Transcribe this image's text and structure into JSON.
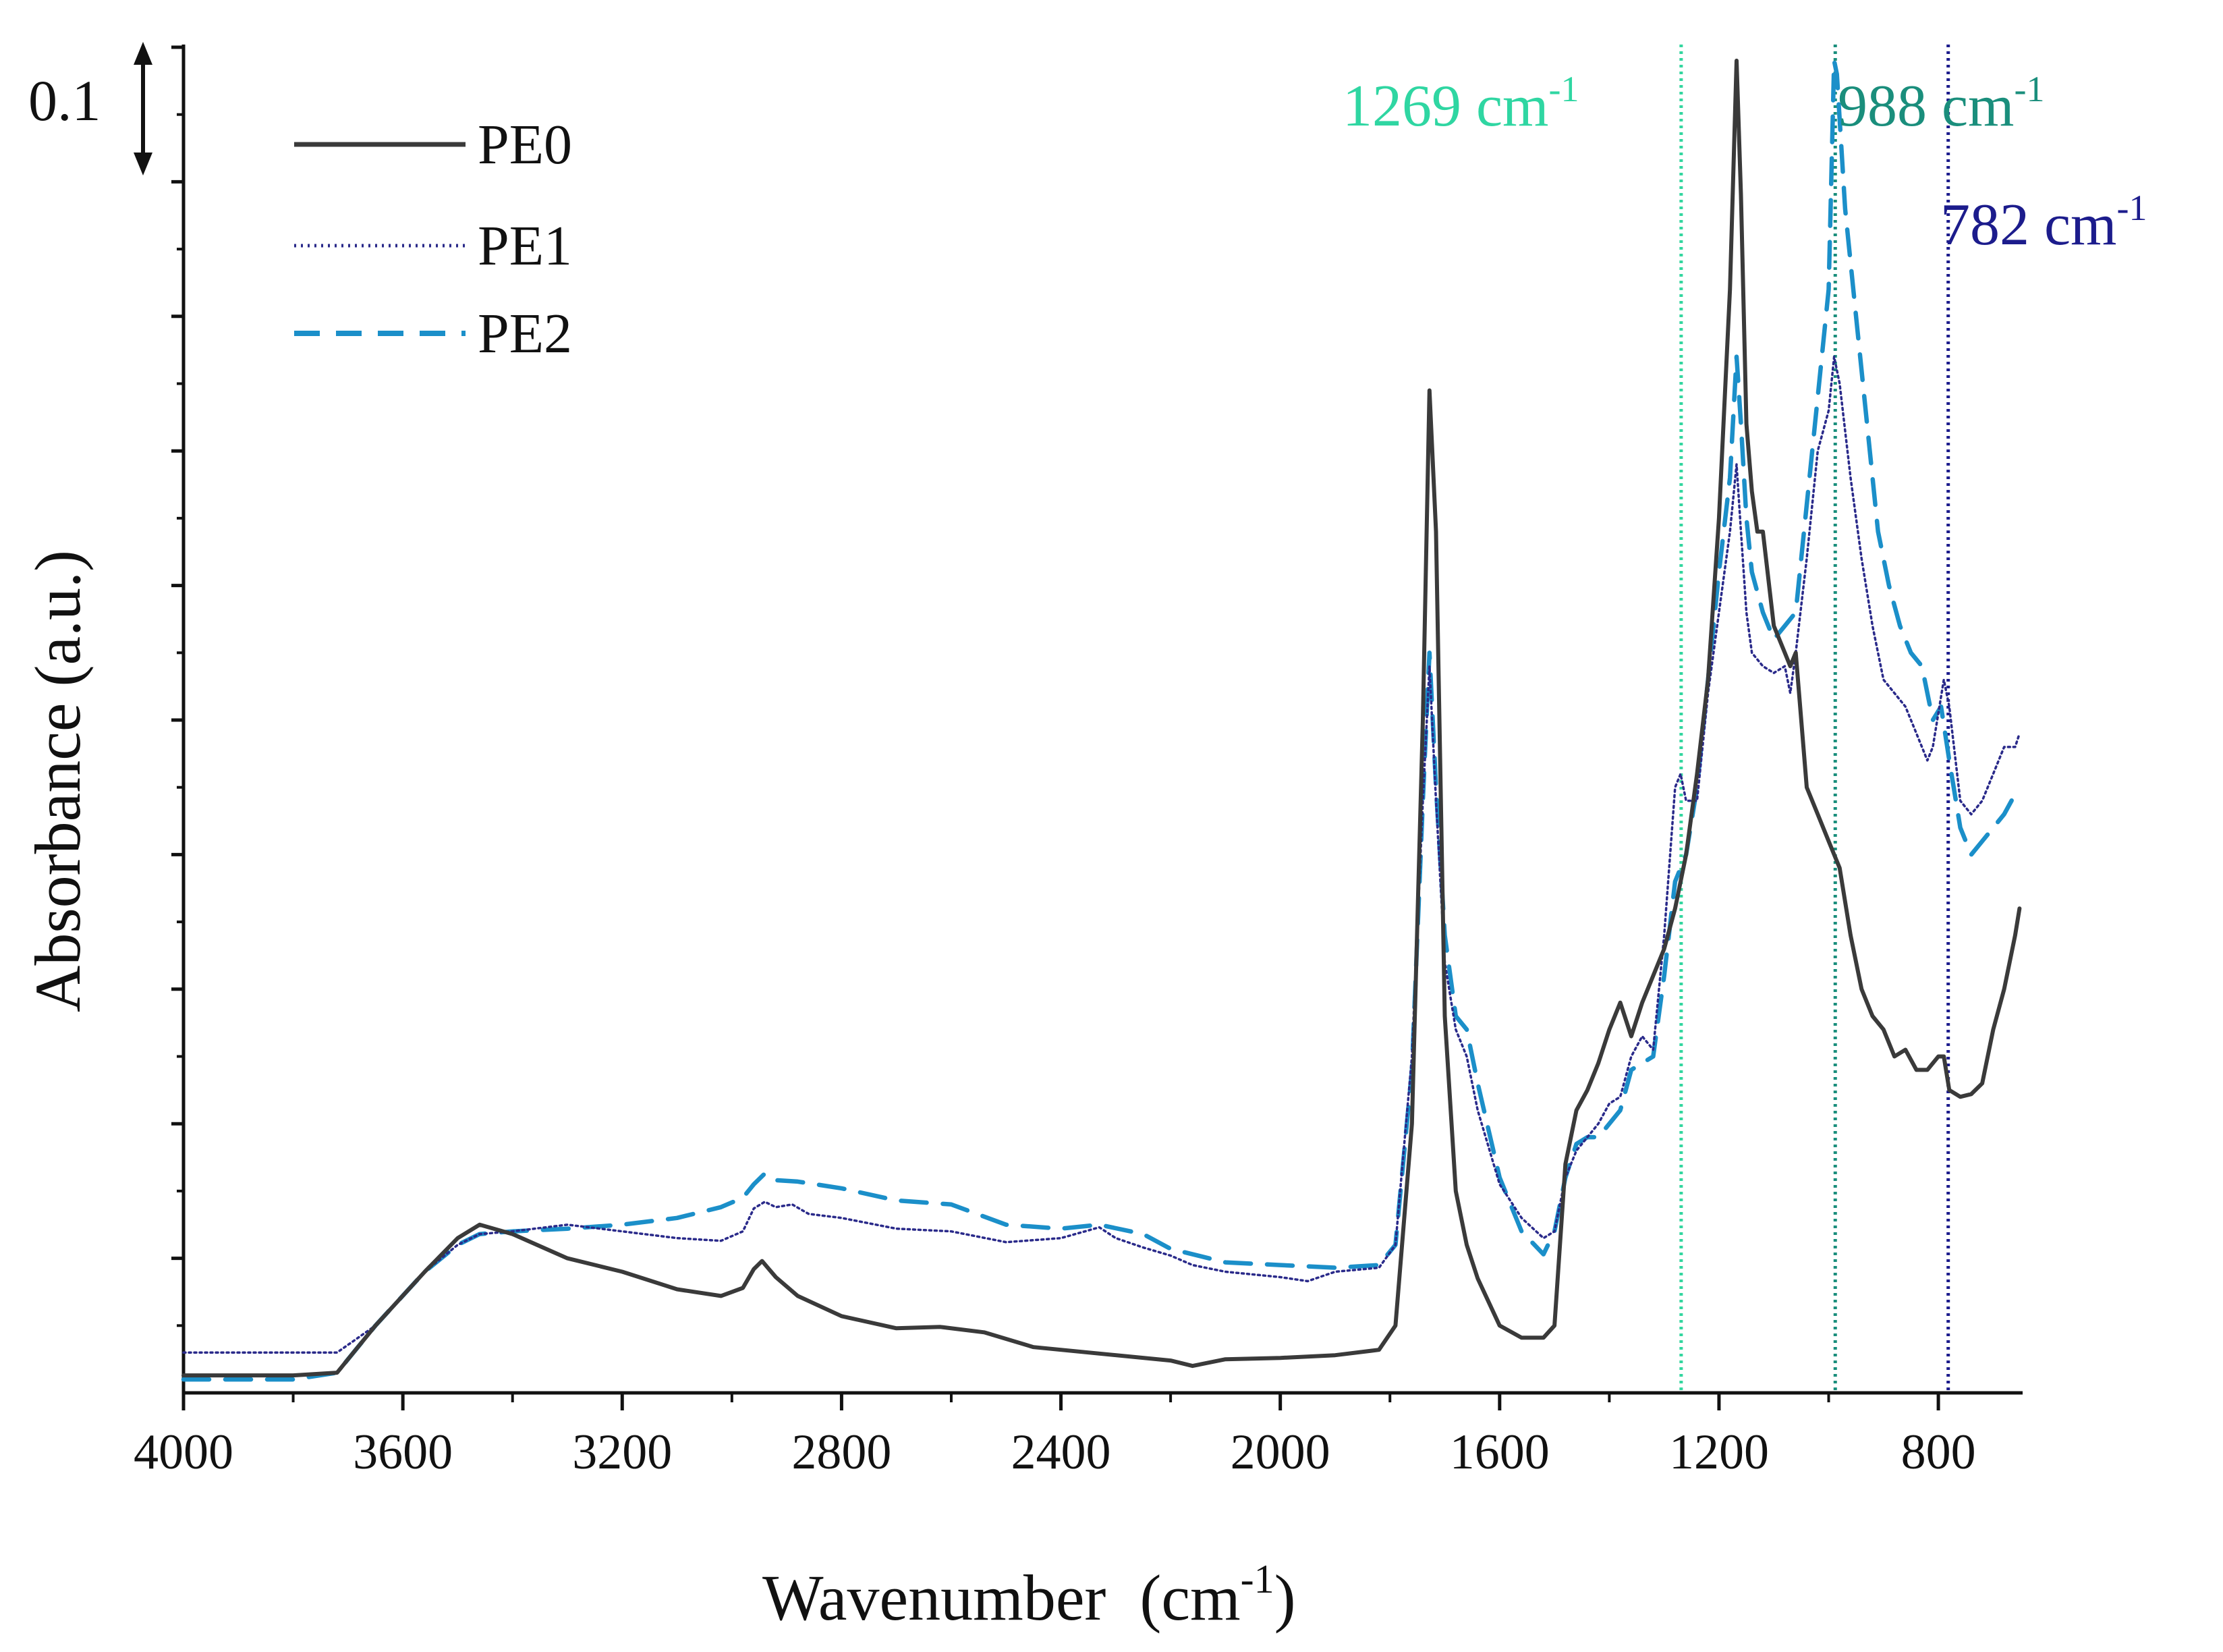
{
  "chart_data": {
    "type": "line",
    "title": "",
    "xlabel": "Wavenumber",
    "xlabel_unit_base": "(cm",
    "xlabel_unit_sup": "-1",
    "xlabel_unit_close": ")",
    "ylabel": "Absorbance (a.u.)",
    "xlim": [
      4000,
      650
    ],
    "ylim": [
      0,
      1.0
    ],
    "x_ticks": [
      4000,
      3600,
      3200,
      2800,
      2400,
      2000,
      1600,
      1200,
      800
    ],
    "x_tick_labels": [
      "4000",
      "3600",
      "3200",
      "2800",
      "2400",
      "2000",
      "1600",
      "1200",
      "800"
    ],
    "y_ticks": [
      0.1,
      0.2,
      0.3,
      0.4,
      0.5,
      0.6,
      0.7,
      0.8,
      0.9,
      1.0
    ],
    "scale_bar": {
      "label": "0.1",
      "value": 0.1
    },
    "legend_position": "top-left",
    "series": [
      {
        "name": "PE0",
        "color": "#3a3a3a",
        "dash": "solid",
        "points": [
          [
            4000,
            0.013
          ],
          [
            3800,
            0.013
          ],
          [
            3720,
            0.015
          ],
          [
            3650,
            0.05
          ],
          [
            3560,
            0.09
          ],
          [
            3500,
            0.115
          ],
          [
            3460,
            0.125
          ],
          [
            3400,
            0.118
          ],
          [
            3300,
            0.1
          ],
          [
            3200,
            0.09
          ],
          [
            3100,
            0.077
          ],
          [
            3020,
            0.072
          ],
          [
            2980,
            0.078
          ],
          [
            2960,
            0.092
          ],
          [
            2945,
            0.098
          ],
          [
            2920,
            0.086
          ],
          [
            2880,
            0.072
          ],
          [
            2800,
            0.057
          ],
          [
            2700,
            0.048
          ],
          [
            2620,
            0.049
          ],
          [
            2540,
            0.045
          ],
          [
            2450,
            0.034
          ],
          [
            2350,
            0.03
          ],
          [
            2200,
            0.024
          ],
          [
            2160,
            0.02
          ],
          [
            2100,
            0.025
          ],
          [
            2000,
            0.026
          ],
          [
            1900,
            0.028
          ],
          [
            1820,
            0.032
          ],
          [
            1790,
            0.05
          ],
          [
            1760,
            0.2
          ],
          [
            1740,
            0.5
          ],
          [
            1728,
            0.745
          ],
          [
            1716,
            0.64
          ],
          [
            1700,
            0.28
          ],
          [
            1680,
            0.15
          ],
          [
            1660,
            0.11
          ],
          [
            1640,
            0.085
          ],
          [
            1600,
            0.05
          ],
          [
            1560,
            0.041
          ],
          [
            1520,
            0.041
          ],
          [
            1500,
            0.05
          ],
          [
            1480,
            0.17
          ],
          [
            1460,
            0.21
          ],
          [
            1440,
            0.225
          ],
          [
            1420,
            0.245
          ],
          [
            1400,
            0.27
          ],
          [
            1380,
            0.29
          ],
          [
            1360,
            0.265
          ],
          [
            1340,
            0.29
          ],
          [
            1320,
            0.31
          ],
          [
            1300,
            0.33
          ],
          [
            1280,
            0.36
          ],
          [
            1260,
            0.4
          ],
          [
            1240,
            0.46
          ],
          [
            1220,
            0.53
          ],
          [
            1200,
            0.65
          ],
          [
            1180,
            0.82
          ],
          [
            1168,
            0.99
          ],
          [
            1160,
            0.89
          ],
          [
            1150,
            0.72
          ],
          [
            1140,
            0.67
          ],
          [
            1130,
            0.64
          ],
          [
            1120,
            0.64
          ],
          [
            1100,
            0.57
          ],
          [
            1080,
            0.55
          ],
          [
            1070,
            0.54
          ],
          [
            1060,
            0.55
          ],
          [
            1040,
            0.45
          ],
          [
            1020,
            0.43
          ],
          [
            1000,
            0.41
          ],
          [
            980,
            0.39
          ],
          [
            960,
            0.34
          ],
          [
            940,
            0.3
          ],
          [
            920,
            0.28
          ],
          [
            900,
            0.27
          ],
          [
            880,
            0.25
          ],
          [
            860,
            0.255
          ],
          [
            840,
            0.24
          ],
          [
            820,
            0.24
          ],
          [
            800,
            0.25
          ],
          [
            790,
            0.25
          ],
          [
            780,
            0.225
          ],
          [
            760,
            0.22
          ],
          [
            740,
            0.222
          ],
          [
            720,
            0.23
          ],
          [
            700,
            0.27
          ],
          [
            680,
            0.3
          ],
          [
            660,
            0.34
          ],
          [
            652,
            0.36
          ]
        ]
      },
      {
        "name": "PE1",
        "color": "#2a2a8a",
        "dash": "dotted",
        "points": [
          [
            4000,
            0.03
          ],
          [
            3800,
            0.03
          ],
          [
            3720,
            0.03
          ],
          [
            3650,
            0.05
          ],
          [
            3560,
            0.09
          ],
          [
            3500,
            0.11
          ],
          [
            3460,
            0.118
          ],
          [
            3400,
            0.12
          ],
          [
            3300,
            0.125
          ],
          [
            3200,
            0.12
          ],
          [
            3100,
            0.115
          ],
          [
            3020,
            0.113
          ],
          [
            2980,
            0.12
          ],
          [
            2960,
            0.137
          ],
          [
            2940,
            0.142
          ],
          [
            2920,
            0.138
          ],
          [
            2890,
            0.14
          ],
          [
            2860,
            0.133
          ],
          [
            2800,
            0.13
          ],
          [
            2700,
            0.122
          ],
          [
            2600,
            0.12
          ],
          [
            2500,
            0.112
          ],
          [
            2400,
            0.115
          ],
          [
            2330,
            0.123
          ],
          [
            2300,
            0.115
          ],
          [
            2250,
            0.108
          ],
          [
            2200,
            0.102
          ],
          [
            2160,
            0.095
          ],
          [
            2100,
            0.09
          ],
          [
            2000,
            0.086
          ],
          [
            1950,
            0.083
          ],
          [
            1900,
            0.09
          ],
          [
            1820,
            0.093
          ],
          [
            1790,
            0.11
          ],
          [
            1760,
            0.25
          ],
          [
            1740,
            0.44
          ],
          [
            1728,
            0.54
          ],
          [
            1716,
            0.44
          ],
          [
            1700,
            0.32
          ],
          [
            1680,
            0.27
          ],
          [
            1660,
            0.25
          ],
          [
            1640,
            0.21
          ],
          [
            1600,
            0.155
          ],
          [
            1560,
            0.13
          ],
          [
            1520,
            0.115
          ],
          [
            1500,
            0.12
          ],
          [
            1480,
            0.16
          ],
          [
            1460,
            0.18
          ],
          [
            1440,
            0.19
          ],
          [
            1420,
            0.2
          ],
          [
            1400,
            0.215
          ],
          [
            1380,
            0.22
          ],
          [
            1360,
            0.25
          ],
          [
            1340,
            0.265
          ],
          [
            1320,
            0.255
          ],
          [
            1300,
            0.34
          ],
          [
            1280,
            0.45
          ],
          [
            1270,
            0.46
          ],
          [
            1260,
            0.44
          ],
          [
            1240,
            0.44
          ],
          [
            1220,
            0.52
          ],
          [
            1200,
            0.58
          ],
          [
            1180,
            0.64
          ],
          [
            1168,
            0.69
          ],
          [
            1160,
            0.64
          ],
          [
            1150,
            0.58
          ],
          [
            1140,
            0.55
          ],
          [
            1120,
            0.54
          ],
          [
            1100,
            0.535
          ],
          [
            1080,
            0.54
          ],
          [
            1070,
            0.52
          ],
          [
            1060,
            0.55
          ],
          [
            1040,
            0.62
          ],
          [
            1020,
            0.7
          ],
          [
            1000,
            0.73
          ],
          [
            990,
            0.77
          ],
          [
            980,
            0.75
          ],
          [
            960,
            0.68
          ],
          [
            940,
            0.62
          ],
          [
            920,
            0.57
          ],
          [
            900,
            0.53
          ],
          [
            880,
            0.52
          ],
          [
            860,
            0.51
          ],
          [
            840,
            0.49
          ],
          [
            820,
            0.47
          ],
          [
            810,
            0.48
          ],
          [
            790,
            0.53
          ],
          [
            780,
            0.51
          ],
          [
            760,
            0.44
          ],
          [
            740,
            0.43
          ],
          [
            720,
            0.44
          ],
          [
            700,
            0.46
          ],
          [
            680,
            0.48
          ],
          [
            660,
            0.48
          ],
          [
            652,
            0.49
          ]
        ]
      },
      {
        "name": "PE2",
        "color": "#1b8fc9",
        "dash": "dashed",
        "points": [
          [
            4000,
            0.01
          ],
          [
            3800,
            0.01
          ],
          [
            3720,
            0.015
          ],
          [
            3650,
            0.05
          ],
          [
            3560,
            0.09
          ],
          [
            3500,
            0.11
          ],
          [
            3460,
            0.118
          ],
          [
            3400,
            0.12
          ],
          [
            3300,
            0.122
          ],
          [
            3200,
            0.125
          ],
          [
            3100,
            0.13
          ],
          [
            3020,
            0.138
          ],
          [
            2980,
            0.145
          ],
          [
            2960,
            0.155
          ],
          [
            2940,
            0.163
          ],
          [
            2920,
            0.158
          ],
          [
            2880,
            0.157
          ],
          [
            2800,
            0.152
          ],
          [
            2700,
            0.143
          ],
          [
            2600,
            0.14
          ],
          [
            2500,
            0.125
          ],
          [
            2400,
            0.122
          ],
          [
            2330,
            0.125
          ],
          [
            2250,
            0.118
          ],
          [
            2200,
            0.107
          ],
          [
            2100,
            0.097
          ],
          [
            2000,
            0.095
          ],
          [
            1900,
            0.093
          ],
          [
            1820,
            0.095
          ],
          [
            1790,
            0.11
          ],
          [
            1760,
            0.24
          ],
          [
            1740,
            0.44
          ],
          [
            1728,
            0.55
          ],
          [
            1716,
            0.45
          ],
          [
            1700,
            0.34
          ],
          [
            1680,
            0.28
          ],
          [
            1660,
            0.27
          ],
          [
            1640,
            0.23
          ],
          [
            1600,
            0.16
          ],
          [
            1560,
            0.12
          ],
          [
            1520,
            0.103
          ],
          [
            1500,
            0.12
          ],
          [
            1480,
            0.16
          ],
          [
            1460,
            0.185
          ],
          [
            1440,
            0.19
          ],
          [
            1420,
            0.19
          ],
          [
            1400,
            0.2
          ],
          [
            1380,
            0.21
          ],
          [
            1360,
            0.24
          ],
          [
            1340,
            0.245
          ],
          [
            1320,
            0.25
          ],
          [
            1300,
            0.31
          ],
          [
            1280,
            0.38
          ],
          [
            1260,
            0.4
          ],
          [
            1240,
            0.45
          ],
          [
            1220,
            0.53
          ],
          [
            1200,
            0.61
          ],
          [
            1180,
            0.68
          ],
          [
            1168,
            0.77
          ],
          [
            1160,
            0.72
          ],
          [
            1150,
            0.65
          ],
          [
            1140,
            0.61
          ],
          [
            1120,
            0.58
          ],
          [
            1100,
            0.56
          ],
          [
            1080,
            0.57
          ],
          [
            1060,
            0.58
          ],
          [
            1040,
            0.66
          ],
          [
            1020,
            0.74
          ],
          [
            1000,
            0.82
          ],
          [
            990,
            0.99
          ],
          [
            985,
            0.98
          ],
          [
            970,
            0.88
          ],
          [
            950,
            0.8
          ],
          [
            930,
            0.72
          ],
          [
            910,
            0.64
          ],
          [
            890,
            0.6
          ],
          [
            870,
            0.57
          ],
          [
            850,
            0.55
          ],
          [
            830,
            0.54
          ],
          [
            810,
            0.5
          ],
          [
            795,
            0.51
          ],
          [
            780,
            0.47
          ],
          [
            760,
            0.42
          ],
          [
            740,
            0.4
          ],
          [
            720,
            0.41
          ],
          [
            700,
            0.42
          ],
          [
            680,
            0.43
          ],
          [
            660,
            0.445
          ],
          [
            652,
            0.45
          ]
        ]
      }
    ],
    "annotations": [
      {
        "label_base": "1269 cm",
        "label_sup": "-1",
        "x": 1269,
        "color": "#2fd6a2",
        "line_color": "#33d69f"
      },
      {
        "label_base": "988 cm",
        "label_sup": "-1",
        "x": 988,
        "color": "#1a8e7c",
        "line_color": "#1a8e7c"
      },
      {
        "label_base": "782 cm",
        "label_sup": "-1",
        "x": 782,
        "color": "#1c1c8c",
        "line_color": "#1c1c8c"
      }
    ]
  }
}
